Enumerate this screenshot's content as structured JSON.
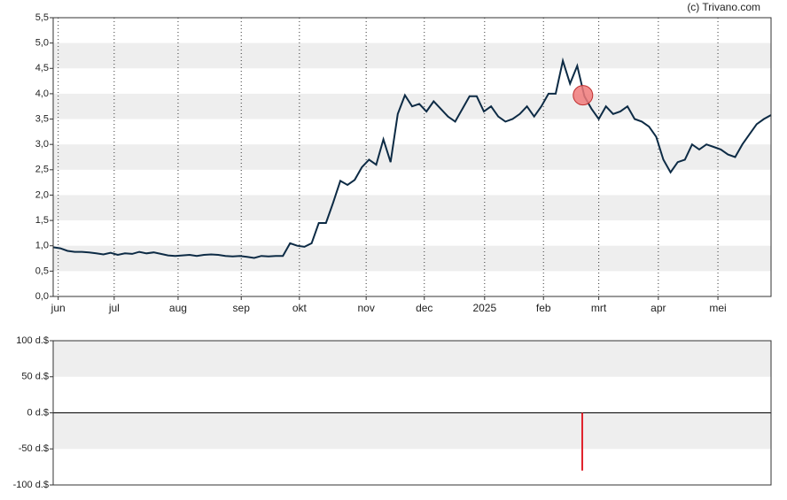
{
  "chart_data": [
    {
      "type": "line",
      "source": "(c) Trivano.com",
      "xlim": [
        0,
        100
      ],
      "xticks": [
        {
          "value": 0.7,
          "label": "jun"
        },
        {
          "value": 8.5,
          "label": "jul"
        },
        {
          "value": 17.4,
          "label": "aug"
        },
        {
          "value": 26.2,
          "label": "sep"
        },
        {
          "value": 34.3,
          "label": "okt"
        },
        {
          "value": 43.6,
          "label": "nov"
        },
        {
          "value": 51.7,
          "label": "dec"
        },
        {
          "value": 60.1,
          "label": "2025"
        },
        {
          "value": 68.3,
          "label": "feb"
        },
        {
          "value": 76.0,
          "label": "mrt"
        },
        {
          "value": 84.3,
          "label": "apr"
        },
        {
          "value": 92.6,
          "label": "mei"
        }
      ],
      "ylim": [
        0,
        5.5
      ],
      "yticks": [
        {
          "value": 0,
          "label": "0,0"
        },
        {
          "value": 0.5,
          "label": "0,5"
        },
        {
          "value": 1,
          "label": "1,0"
        },
        {
          "value": 1.5,
          "label": "1,5"
        },
        {
          "value": 2,
          "label": "2,0"
        },
        {
          "value": 2.5,
          "label": "2,5"
        },
        {
          "value": 3,
          "label": "3,0"
        },
        {
          "value": 3.5,
          "label": "3,5"
        },
        {
          "value": 4,
          "label": "4,0"
        },
        {
          "value": 4.5,
          "label": "4,5"
        },
        {
          "value": 5,
          "label": "5,0"
        },
        {
          "value": 5.5,
          "label": "5,5"
        }
      ],
      "series": [
        {
          "color": "#0d2b45",
          "values": [
            0.97,
            0.95,
            0.9,
            0.88,
            0.88,
            0.87,
            0.85,
            0.83,
            0.86,
            0.82,
            0.85,
            0.84,
            0.88,
            0.85,
            0.87,
            0.84,
            0.81,
            0.8,
            0.81,
            0.82,
            0.8,
            0.82,
            0.83,
            0.82,
            0.8,
            0.79,
            0.8,
            0.78,
            0.76,
            0.8,
            0.79,
            0.8,
            0.8,
            1.05,
            1.0,
            0.98,
            1.05,
            1.45,
            1.45,
            1.85,
            2.28,
            2.2,
            2.3,
            2.55,
            2.7,
            2.6,
            3.1,
            2.65,
            3.6,
            3.97,
            3.75,
            3.8,
            3.65,
            3.85,
            3.7,
            3.55,
            3.45,
            3.7,
            3.95,
            3.95,
            3.65,
            3.75,
            3.55,
            3.45,
            3.5,
            3.6,
            3.75,
            3.55,
            3.75,
            4.0,
            4.0,
            4.65,
            4.2,
            4.55,
            3.95,
            3.7,
            3.5,
            3.75,
            3.6,
            3.65,
            3.75,
            3.5,
            3.45,
            3.35,
            3.15,
            2.7,
            2.45,
            2.65,
            2.7,
            3.0,
            2.9,
            3.0,
            2.95,
            2.9,
            2.8,
            2.75,
            3.0,
            3.2,
            3.4,
            3.5,
            3.58
          ]
        }
      ],
      "marker": {
        "x": 73.8,
        "y": 3.97,
        "color": "#f07a7a"
      }
    },
    {
      "type": "bar",
      "xlim": [
        0,
        100
      ],
      "ylim": [
        -100,
        100
      ],
      "yticks": [
        {
          "value": -100,
          "label": "-100 d.$"
        },
        {
          "value": -50,
          "label": "-50 d.$"
        },
        {
          "value": 0,
          "label": "0 d.$"
        },
        {
          "value": 50,
          "label": "50 d.$"
        },
        {
          "value": 100,
          "label": "100 d.$"
        }
      ],
      "bars": [
        {
          "x": 73.7,
          "value": -80,
          "color": "#e0202a"
        }
      ]
    }
  ]
}
